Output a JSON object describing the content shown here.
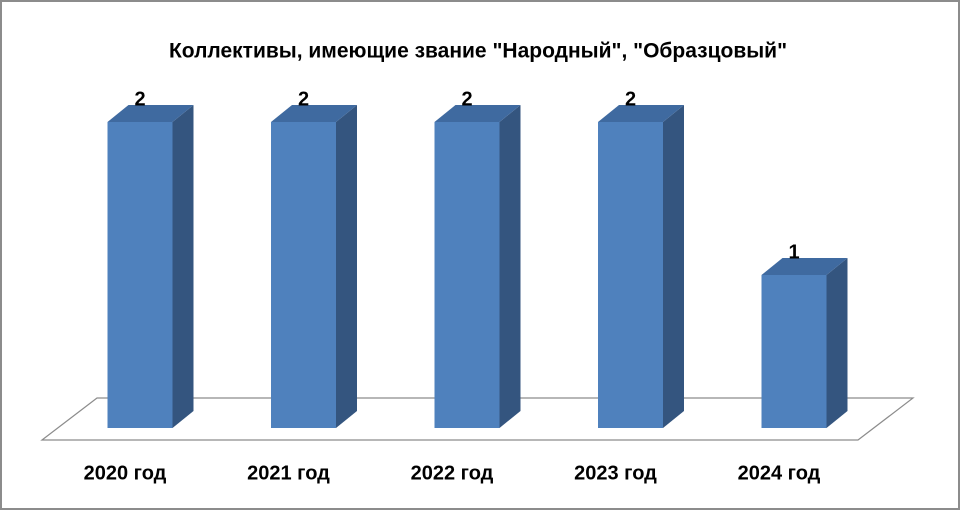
{
  "chart_data": {
    "type": "bar3d",
    "title": "Коллективы, имеющие звание \"Народный\", \"Образцовый\"",
    "categories": [
      "2020 год",
      "2021 год",
      "2022 год",
      "2023 год",
      "2024 год"
    ],
    "values": [
      2,
      2,
      2,
      2,
      1
    ],
    "color": "#4f81bd",
    "ylim": [
      0,
      2
    ]
  }
}
